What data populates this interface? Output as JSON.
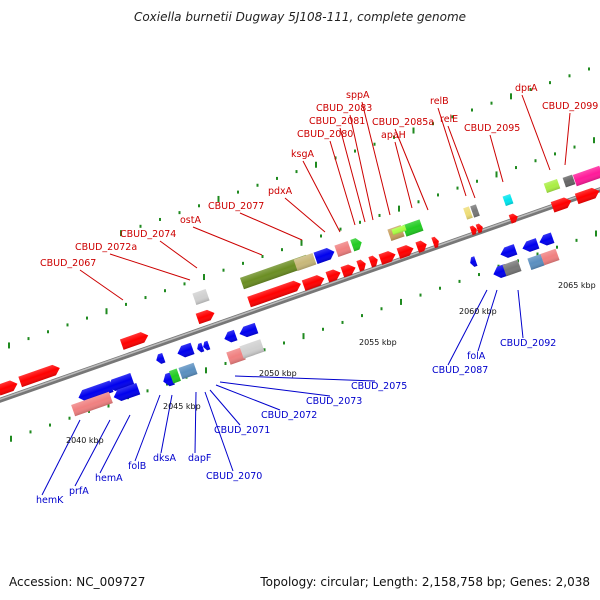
{
  "title": "Coxiella burnetii Dugway 5J108-111, complete genome",
  "footer": {
    "accession": "Accession: NC_009727",
    "summary": "Topology: circular; Length: 2,158,758 bp; Genes: 2,038"
  },
  "scale_labels": [
    "2040 kbp",
    "2045 kbp",
    "2050 kbp",
    "2055 kbp",
    "2060 kbp",
    "2065 kbp"
  ],
  "forward_genes": [
    "CBUD_2067",
    "CBUD_2072a",
    "CBUD_2074",
    "ostA",
    "CBUD_2077",
    "pdxA",
    "ksgA",
    "CBUD_2080",
    "CBUD_2081",
    "CBUD_2083",
    "sppA",
    "apaH",
    "CBUD_2085a",
    "relB",
    "relE",
    "CBUD_2095",
    "dprA",
    "CBUD_2099"
  ],
  "reverse_genes": [
    "hemK",
    "prfA",
    "hemA",
    "folB",
    "dksA",
    "dapF",
    "CBUD_2070",
    "CBUD_2071",
    "CBUD_2072",
    "CBUD_2073",
    "CBUD_2075",
    "CBUD_2087",
    "folA",
    "CBUD_2092"
  ],
  "colors": {
    "forward_label": "#cc0000",
    "reverse_label": "#0000cc",
    "backbone": "#888888"
  }
}
